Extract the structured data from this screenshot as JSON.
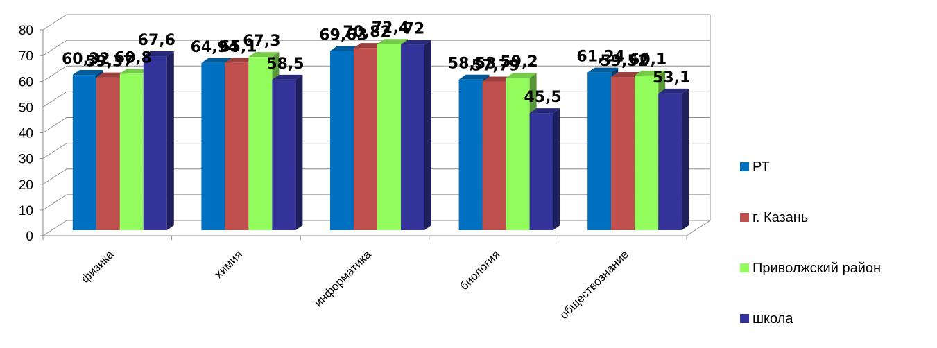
{
  "chart_data": {
    "type": "bar",
    "title": "",
    "xlabel": "",
    "ylabel": "",
    "ylim": [
      0,
      80
    ],
    "yticks": [
      0,
      10,
      20,
      30,
      40,
      50,
      60,
      70,
      80
    ],
    "grid": true,
    "legend_position": "right",
    "categories": [
      "физика",
      "химия",
      "информатика",
      "биология",
      "обществознание"
    ],
    "series": [
      {
        "name": "РТ",
        "color": "#0070c0",
        "values": [
          60.32,
          64.94,
          69.63,
          58.53,
          61.24
        ],
        "labels": [
          "60,32",
          "64,94",
          "69,63",
          "58,53",
          "61,24"
        ]
      },
      {
        "name": "г. Казань",
        "color": "#c0504d",
        "values": [
          59.37,
          65.1,
          70.82,
          57.79,
          59.52
        ],
        "labels": [
          "59,37",
          "65,1",
          "70,82",
          "57,79",
          "59,52"
        ]
      },
      {
        "name": "Приволжский район",
        "color": "#92fc5c",
        "values": [
          60.8,
          67.3,
          72.4,
          59.2,
          60.1
        ],
        "labels": [
          "60,8",
          "67,3",
          "72,4",
          "59,2",
          "60,1"
        ]
      },
      {
        "name": "школа",
        "color": "#333399",
        "values": [
          67.6,
          58.5,
          72,
          45.5,
          53.1
        ],
        "labels": [
          "67,6",
          "58,5",
          "72",
          "45,5",
          "53,1"
        ]
      }
    ]
  }
}
